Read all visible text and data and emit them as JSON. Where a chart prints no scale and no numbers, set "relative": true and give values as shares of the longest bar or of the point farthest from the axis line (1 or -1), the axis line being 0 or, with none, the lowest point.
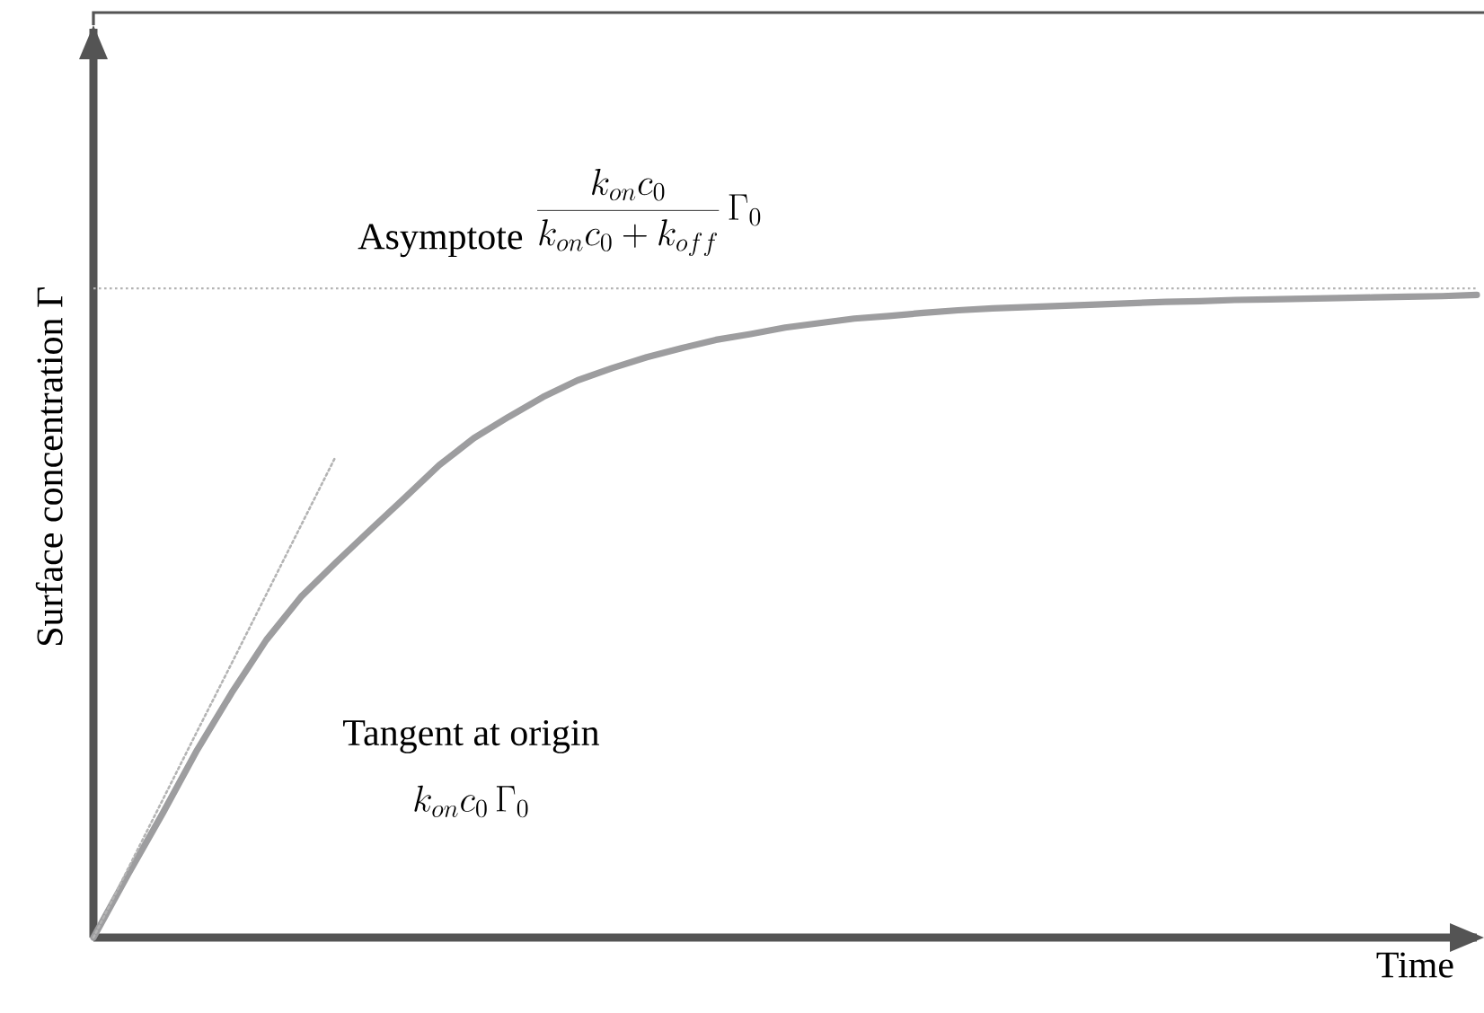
{
  "chart_data": {
    "type": "line",
    "relative": true,
    "xlabel": "Time",
    "ylabel": "Surface concentration Γ",
    "categories": [
      null,
      null,
      null,
      null,
      null,
      null,
      null,
      null,
      null,
      null,
      null,
      null,
      null,
      null,
      null,
      null,
      null,
      null,
      null,
      null,
      null,
      null,
      null,
      null,
      null,
      null,
      null,
      null,
      null,
      null,
      null,
      null,
      null,
      null,
      null,
      null,
      null,
      null,
      null,
      null,
      null
    ],
    "series": [
      {
        "color": "#9d9d9f",
        "values": [
          0,
          0.098,
          0.193,
          0.292,
          0.381,
          0.463,
          0.53,
          0.583,
          0.634,
          0.684,
          0.735,
          0.777,
          0.81,
          0.841,
          0.867,
          0.886,
          0.903,
          0.917,
          0.93,
          0.939,
          0.949,
          0.956,
          0.963,
          0.967,
          0.972,
          0.976,
          0.979,
          0.981,
          0.983,
          0.985,
          0.987,
          0.989,
          0.99,
          0.992,
          0.993,
          0.994,
          0.995,
          0.996,
          0.997,
          0.998,
          1.0
        ]
      },
      {
        "color": "#b4b4b4",
        "line_style": "dotted",
        "values": [
          0,
          0.107,
          0.214,
          0.321,
          0.427,
          0.534,
          0.641,
          0.748,
          null,
          null,
          null,
          null,
          null,
          null,
          null,
          null,
          null,
          null,
          null,
          null,
          null,
          null,
          null,
          null,
          null,
          null,
          null,
          null,
          null,
          null,
          null,
          null,
          null,
          null,
          null,
          null,
          null,
          null,
          null,
          null,
          null
        ]
      }
    ],
    "ref_lines": [
      {
        "axis": "y",
        "value": 1.01,
        "label": "Asymptote",
        "color": "#b4b4b4",
        "line_style": "dotted"
      }
    ],
    "annotations": [
      "\\frac{k_{on}c_0}{k_{on}c_0+k_{off}}\\,\\Gamma_0",
      "Tangent at origin",
      "k_{on}c_0\\,\\Gamma_0"
    ]
  }
}
